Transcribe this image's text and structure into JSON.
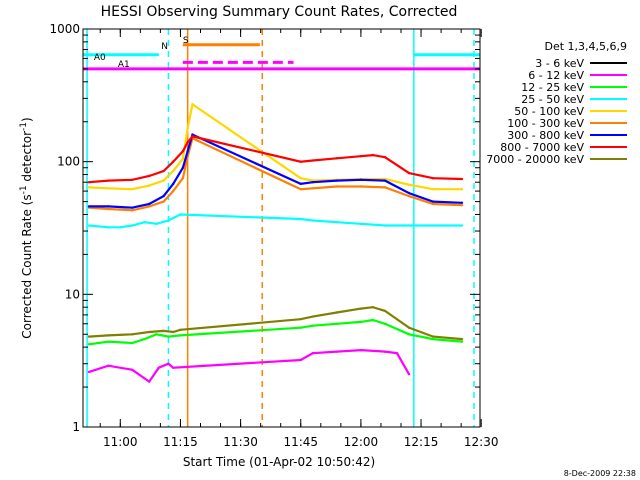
{
  "chart_data": {
    "type": "line",
    "title": "HESSI Observing Summary Count Rates, Corrected",
    "xlabel": "Start Time (01-Apr-02 10:50:42)",
    "ylabel": "Corrected Count Rate (s^-1 detector^-1)",
    "ylabel_parts": {
      "pre": "Corrected Count Rate (s",
      "sup1": "-1",
      "mid": " detector",
      "sup2": "-1",
      "post": ")"
    },
    "xlim": [
      10.845,
      12.495
    ],
    "ylim": [
      1,
      1000
    ],
    "yscale": "log",
    "x_ticks": [
      {
        "t": 11.0,
        "label": "11:00"
      },
      {
        "t": 11.25,
        "label": "11:15"
      },
      {
        "t": 11.5,
        "label": "11:30"
      },
      {
        "t": 11.75,
        "label": "11:45"
      },
      {
        "t": 12.0,
        "label": "12:00"
      },
      {
        "t": 12.25,
        "label": "12:15"
      },
      {
        "t": 12.5,
        "label": "12:30"
      }
    ],
    "y_ticks": [
      {
        "v": 1,
        "label": "1"
      },
      {
        "v": 10,
        "label": "10"
      },
      {
        "v": 100,
        "label": "100"
      },
      {
        "v": 1000,
        "label": "1000"
      }
    ],
    "legend_title": "Det 1,3,4,5,6,9",
    "series": [
      {
        "name": "3 - 6 keV",
        "color": "#000000",
        "points": []
      },
      {
        "name": "6 - 12 keV",
        "color": "#ff00ff",
        "points": [
          [
            10.87,
            2.6
          ],
          [
            10.95,
            2.9
          ],
          [
            11.05,
            2.7
          ],
          [
            11.12,
            2.2
          ],
          [
            11.16,
            2.8
          ],
          [
            11.2,
            3.0
          ],
          [
            11.22,
            2.8
          ],
          [
            11.75,
            3.2
          ],
          [
            11.8,
            3.6
          ],
          [
            11.9,
            3.7
          ],
          [
            12.0,
            3.8
          ],
          [
            12.1,
            3.7
          ],
          [
            12.15,
            3.6
          ],
          [
            12.2,
            2.5
          ]
        ]
      },
      {
        "name": "12 - 25 keV",
        "color": "#00ff00",
        "points": [
          [
            10.87,
            4.2
          ],
          [
            10.95,
            4.4
          ],
          [
            11.05,
            4.3
          ],
          [
            11.1,
            4.6
          ],
          [
            11.15,
            5.0
          ],
          [
            11.2,
            4.8
          ],
          [
            11.25,
            4.9
          ],
          [
            11.75,
            5.6
          ],
          [
            11.8,
            5.8
          ],
          [
            11.9,
            6.0
          ],
          [
            12.0,
            6.2
          ],
          [
            12.05,
            6.4
          ],
          [
            12.1,
            6.0
          ],
          [
            12.2,
            5.0
          ],
          [
            12.3,
            4.6
          ],
          [
            12.42,
            4.4
          ]
        ]
      },
      {
        "name": "25 - 50 keV",
        "color": "#00ffff",
        "points": [
          [
            10.87,
            33
          ],
          [
            10.95,
            32
          ],
          [
            11.0,
            32
          ],
          [
            11.05,
            33
          ],
          [
            11.1,
            35
          ],
          [
            11.15,
            34
          ],
          [
            11.2,
            36
          ],
          [
            11.25,
            40
          ],
          [
            11.75,
            37
          ],
          [
            11.8,
            36
          ],
          [
            11.9,
            35
          ],
          [
            12.0,
            34
          ],
          [
            12.1,
            33
          ],
          [
            12.2,
            33
          ],
          [
            12.3,
            33
          ],
          [
            12.42,
            33
          ]
        ]
      },
      {
        "name": "50 - 100 keV",
        "color": "#ffd700",
        "points": [
          [
            10.87,
            64
          ],
          [
            10.95,
            63
          ],
          [
            11.05,
            62
          ],
          [
            11.12,
            66
          ],
          [
            11.18,
            72
          ],
          [
            11.22,
            85
          ],
          [
            11.26,
            105
          ],
          [
            11.28,
            180
          ],
          [
            11.3,
            270
          ],
          [
            11.75,
            75
          ],
          [
            11.8,
            72
          ],
          [
            11.9,
            73
          ],
          [
            12.0,
            74
          ],
          [
            12.1,
            74
          ],
          [
            12.2,
            67
          ],
          [
            12.3,
            62
          ],
          [
            12.42,
            62
          ]
        ]
      },
      {
        "name": "100 - 300 keV",
        "color": "#ff8000",
        "points": [
          [
            10.87,
            45
          ],
          [
            10.95,
            44
          ],
          [
            11.05,
            43
          ],
          [
            11.12,
            46
          ],
          [
            11.18,
            50
          ],
          [
            11.22,
            60
          ],
          [
            11.26,
            75
          ],
          [
            11.28,
            110
          ],
          [
            11.3,
            150
          ],
          [
            11.75,
            62
          ],
          [
            11.8,
            63
          ],
          [
            11.9,
            65
          ],
          [
            12.0,
            65
          ],
          [
            12.1,
            64
          ],
          [
            12.2,
            55
          ],
          [
            12.3,
            48
          ],
          [
            12.42,
            47
          ]
        ]
      },
      {
        "name": "300 - 800 keV",
        "color": "#0000ff",
        "points": [
          [
            10.87,
            46
          ],
          [
            10.95,
            46
          ],
          [
            11.05,
            45
          ],
          [
            11.12,
            48
          ],
          [
            11.18,
            55
          ],
          [
            11.22,
            68
          ],
          [
            11.26,
            90
          ],
          [
            11.28,
            120
          ],
          [
            11.3,
            160
          ],
          [
            11.75,
            68
          ],
          [
            11.8,
            70
          ],
          [
            11.9,
            72
          ],
          [
            12.0,
            73
          ],
          [
            12.1,
            72
          ],
          [
            12.2,
            58
          ],
          [
            12.3,
            50
          ],
          [
            12.42,
            49
          ]
        ]
      },
      {
        "name": "800 - 7000 keV",
        "color": "#ff0000",
        "points": [
          [
            10.87,
            70
          ],
          [
            10.95,
            72
          ],
          [
            11.05,
            73
          ],
          [
            11.12,
            78
          ],
          [
            11.18,
            85
          ],
          [
            11.22,
            100
          ],
          [
            11.26,
            120
          ],
          [
            11.28,
            140
          ],
          [
            11.3,
            155
          ],
          [
            11.75,
            100
          ],
          [
            11.8,
            102
          ],
          [
            11.9,
            106
          ],
          [
            12.0,
            110
          ],
          [
            12.05,
            112
          ],
          [
            12.1,
            108
          ],
          [
            12.2,
            82
          ],
          [
            12.3,
            75
          ],
          [
            12.42,
            74
          ]
        ]
      },
      {
        "name": "7000 - 20000 keV",
        "color": "#808000",
        "points": [
          [
            10.87,
            4.8
          ],
          [
            10.95,
            4.9
          ],
          [
            11.05,
            5.0
          ],
          [
            11.12,
            5.2
          ],
          [
            11.18,
            5.3
          ],
          [
            11.22,
            5.2
          ],
          [
            11.25,
            5.4
          ],
          [
            11.75,
            6.5
          ],
          [
            11.8,
            6.8
          ],
          [
            11.9,
            7.3
          ],
          [
            12.0,
            7.8
          ],
          [
            12.05,
            8.0
          ],
          [
            12.1,
            7.5
          ],
          [
            12.2,
            5.6
          ],
          [
            12.3,
            4.8
          ],
          [
            12.42,
            4.6
          ]
        ]
      }
    ],
    "flags": [
      {
        "label": "S",
        "color": "#ff8000",
        "y": 760,
        "segments": [
          [
            11.26,
            11.58
          ]
        ],
        "style": "solid"
      },
      {
        "label": "",
        "color": "#00ffff",
        "y": 640,
        "segments": [
          [
            10.845,
            11.16
          ],
          [
            12.22,
            12.495
          ]
        ],
        "style": "solid"
      },
      {
        "label": "N",
        "color": "#00ffff",
        "y": 0,
        "segments": [],
        "style": "solid"
      },
      {
        "label": "",
        "color": "#ff00ff",
        "y": 560,
        "segments": [
          [
            11.26,
            11.72
          ]
        ],
        "style": "dashed"
      },
      {
        "label": "",
        "color": "#ff00ff",
        "y": 500,
        "segments": [
          [
            10.845,
            12.495
          ]
        ],
        "style": "solid"
      },
      {
        "label": "A0",
        "color": "#ff00ff",
        "y": 0,
        "segments": [],
        "style": "solid"
      },
      {
        "label": "A1",
        "color": "#ff00ff",
        "y": 0,
        "segments": [],
        "style": "solid"
      }
    ],
    "event_lines": [
      {
        "t": 10.862,
        "color": "#00ffff",
        "style": "solid"
      },
      {
        "t": 11.2,
        "color": "#00ffff",
        "style": "dashed"
      },
      {
        "t": 11.28,
        "color": "#ff8000",
        "style": "solid"
      },
      {
        "t": 11.59,
        "color": "#ff8000",
        "style": "dashed"
      },
      {
        "t": 12.22,
        "color": "#00ffff",
        "style": "solid"
      },
      {
        "t": 12.47,
        "color": "#00ffff",
        "style": "dashed"
      }
    ],
    "footer": "8-Dec-2009 22:38"
  }
}
